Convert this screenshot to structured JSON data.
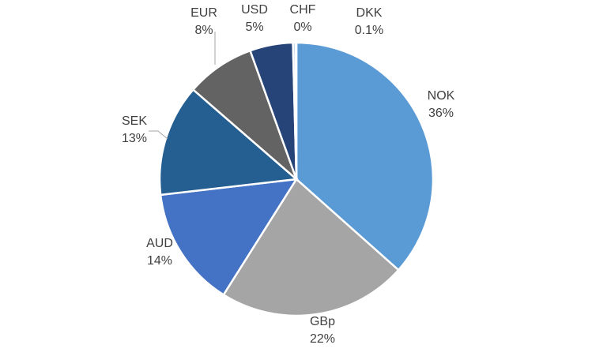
{
  "chart_data": {
    "type": "pie",
    "title": "",
    "legend": "none",
    "start_angle_deg": 90,
    "direction": "clockwise",
    "slices": [
      {
        "name": "NOK",
        "value": 36,
        "label": "36%",
        "color": "#5B9BD5"
      },
      {
        "name": "GBp",
        "value": 22,
        "label": "22%",
        "color": "#A5A5A5"
      },
      {
        "name": "AUD",
        "value": 14,
        "label": "14%",
        "color": "#4472C4"
      },
      {
        "name": "SEK",
        "value": 13,
        "label": "13%",
        "color": "#255E91"
      },
      {
        "name": "EUR",
        "value": 8,
        "label": "8%",
        "color": "#636363"
      },
      {
        "name": "USD",
        "value": 5,
        "label": "5%",
        "color": "#264478"
      },
      {
        "name": "CHF",
        "value": 0.3,
        "label": "0%",
        "color": "#9DC3E6"
      },
      {
        "name": "DKK",
        "value": 0.1,
        "label": "0.1%",
        "color": "#D9D9D9"
      }
    ]
  }
}
